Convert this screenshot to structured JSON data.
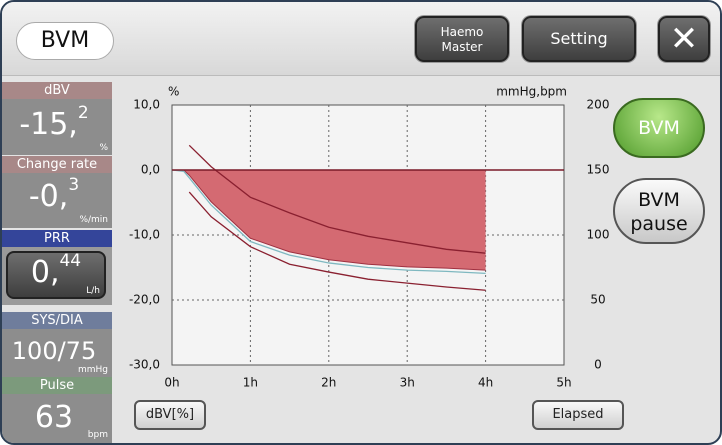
{
  "header": {
    "title": "BVM",
    "haemo_master": [
      "Haemo",
      "Master"
    ],
    "setting": "Setting"
  },
  "panel": {
    "dbv": {
      "label": "dBV",
      "value": "-15,",
      "value_sup": "2",
      "unit": "%"
    },
    "change_rate": {
      "label": "Change rate",
      "value": "-0,",
      "value_sup": "3",
      "unit": "%/min"
    },
    "prr": {
      "label": "PRR",
      "value": "0,",
      "value_sup": "44",
      "unit": "L/h"
    },
    "sys_dia": {
      "label": "SYS/DIA",
      "value": "100/75",
      "unit": "mmHg"
    },
    "pulse": {
      "label": "Pulse",
      "value": "63",
      "unit": "bpm"
    }
  },
  "side_buttons": {
    "bvm": "BVM",
    "bvm_pause": [
      "BVM",
      "pause"
    ]
  },
  "bottom": {
    "left": "dBV[%]",
    "right": "Elapsed"
  },
  "chart": {
    "type": "area",
    "y_unit": "%",
    "y2_unit": "mmHg,bpm",
    "grid": true,
    "x": [
      0,
      0.15,
      0.22,
      0.5,
      1,
      1.5,
      2,
      2.5,
      3,
      3.5,
      4
    ],
    "xlim": [
      0,
      5
    ],
    "xticks": [
      {
        "value": 0,
        "label": "0h"
      },
      {
        "value": 1,
        "label": "1h"
      },
      {
        "value": 2,
        "label": "2h"
      },
      {
        "value": 3,
        "label": "3h"
      },
      {
        "value": 4,
        "label": "4h"
      },
      {
        "value": 5,
        "label": "5h"
      }
    ],
    "ylim": [
      -30,
      10
    ],
    "yticks": [
      {
        "value": 10,
        "label": "10,0"
      },
      {
        "value": 0,
        "label": "0,0"
      },
      {
        "value": -10,
        "label": "-10,0"
      },
      {
        "value": -20,
        "label": "-20,0"
      },
      {
        "value": -30,
        "label": "-30,0"
      }
    ],
    "y2lim": [
      0,
      200
    ],
    "y2ticks": [
      200,
      150,
      100,
      50,
      0
    ],
    "series": [
      {
        "type": "area",
        "color": "#d46a72",
        "values": [
          0,
          0,
          -0.8,
          -4.9,
          -10.5,
          -12.6,
          -13.8,
          -14.5,
          -14.9,
          -15.1,
          -15.4
        ]
      },
      {
        "type": "line",
        "color": "#7fb8c0",
        "values": [
          0,
          -0.2,
          -1.2,
          -5.4,
          -11,
          -13.1,
          -14.3,
          -15,
          -15.4,
          -15.6,
          -15.9
        ]
      },
      {
        "type": "line",
        "color": "#8a2030",
        "values": [
          null,
          null,
          3.8,
          0.5,
          -4.2,
          -6.6,
          -8.8,
          -10.2,
          -11.2,
          -12.2,
          -12.8
        ]
      },
      {
        "type": "line",
        "color": "#8a2030",
        "values": [
          null,
          null,
          -3.4,
          -7.2,
          -11.8,
          -14.5,
          -15.7,
          -16.8,
          -17.4,
          -18,
          -18.5
        ]
      }
    ]
  }
}
